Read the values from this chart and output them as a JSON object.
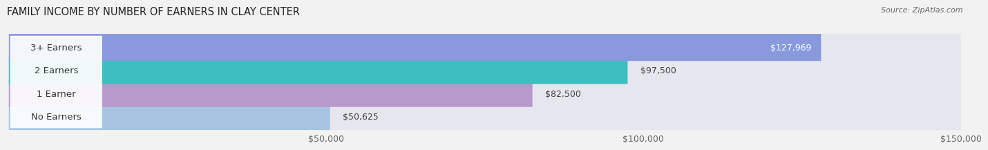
{
  "title": "FAMILY INCOME BY NUMBER OF EARNERS IN CLAY CENTER",
  "source": "Source: ZipAtlas.com",
  "categories": [
    "No Earners",
    "1 Earner",
    "2 Earners",
    "3+ Earners"
  ],
  "values": [
    50625,
    82500,
    97500,
    127969
  ],
  "bar_colors": [
    "#a8c4e0",
    "#b899cc",
    "#3dbfbf",
    "#8899dd"
  ],
  "label_colors": [
    "#555555",
    "#555555",
    "#555555",
    "#ffffff"
  ],
  "xlim": [
    0,
    150000
  ],
  "xticks": [
    50000,
    100000,
    150000
  ],
  "xtick_labels": [
    "$50,000",
    "$100,000",
    "$150,000"
  ],
  "background_color": "#f2f2f2",
  "bar_background": "#e6e6ee",
  "title_fontsize": 10.5,
  "tick_fontsize": 9,
  "label_fontsize": 9.5,
  "value_fontsize": 9
}
